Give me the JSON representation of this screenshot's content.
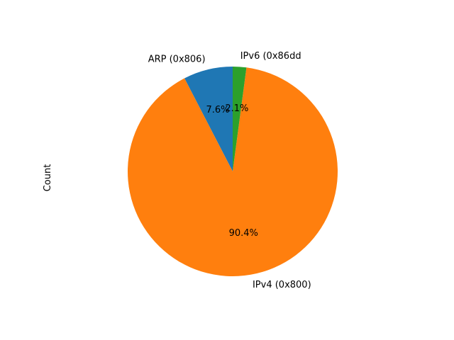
{
  "chart_data": {
    "type": "pie",
    "ylabel": "Count",
    "start_angle_deg": 90,
    "direction": "counterclockwise",
    "slices": [
      {
        "label": "ARP (0x806)",
        "pct_label": "7.6%",
        "value": 7.6,
        "color": "#1f77b4"
      },
      {
        "label": "IPv4 (0x800)",
        "pct_label": "90.4%",
        "value": 90.4,
        "color": "#ff7f0e"
      },
      {
        "label": "IPv6 (0x86dd",
        "pct_label": "2.1%",
        "value": 2.1,
        "color": "#2ca02c"
      }
    ]
  }
}
